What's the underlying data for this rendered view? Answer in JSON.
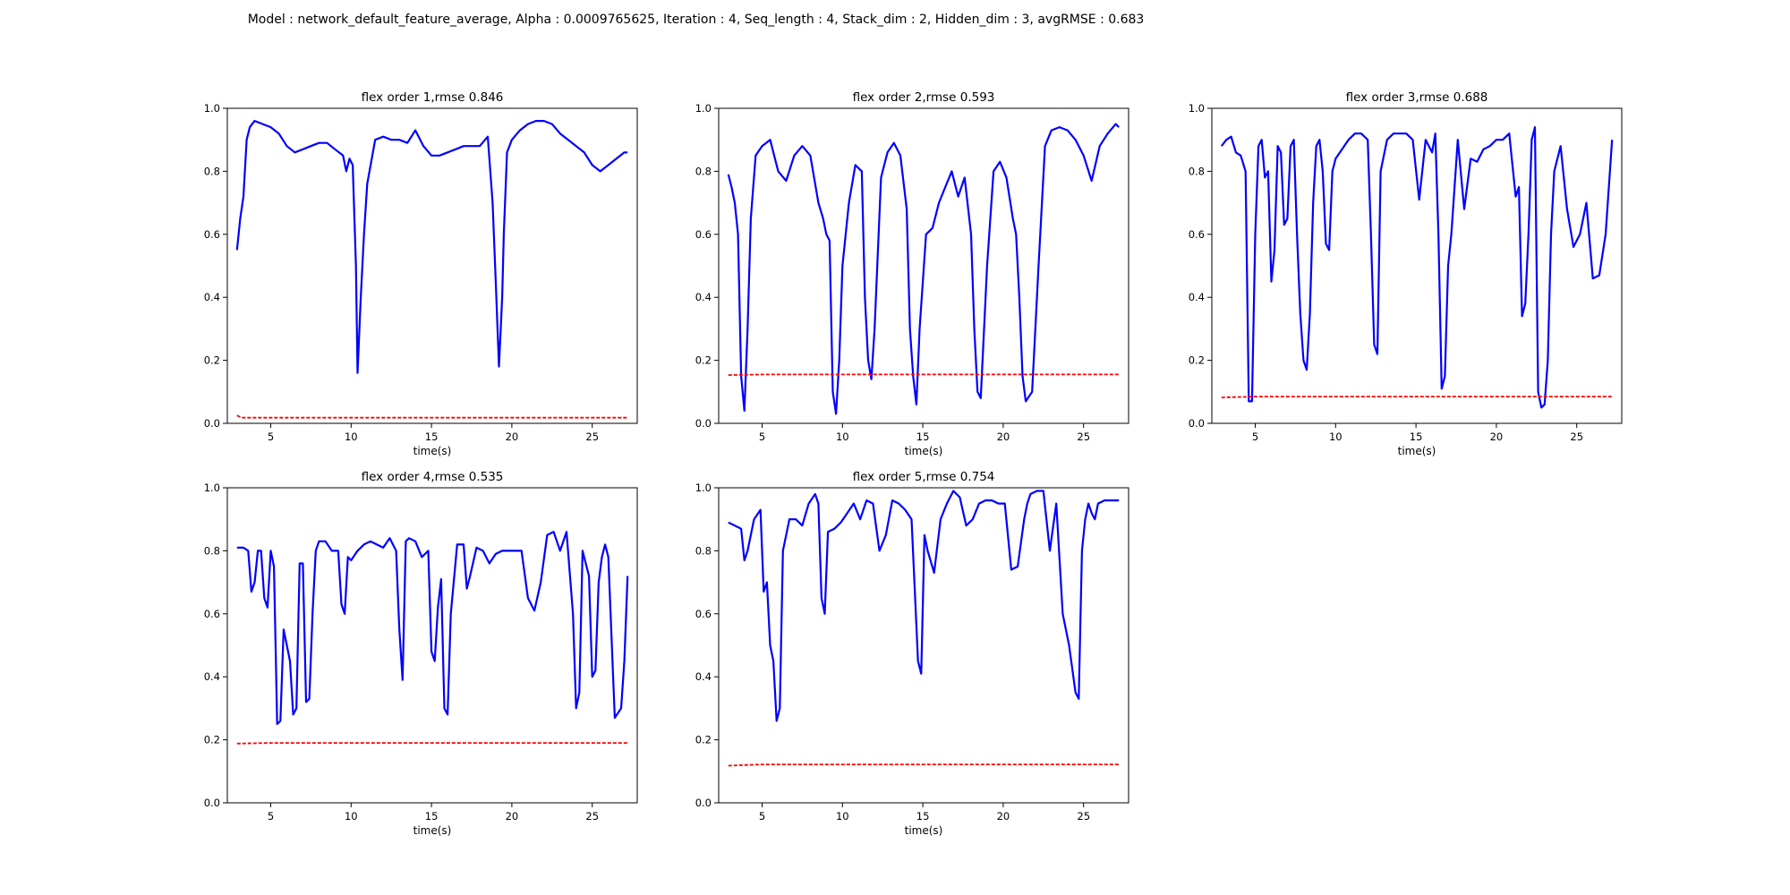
{
  "figure": {
    "suptitle": "Model : network_default_feature_average, Alpha : 0.0009765625, Iteration : 4, Seq_length : 4, Stack_dim : 2, Hidden_dim : 3, avgRMSE : 0.683"
  },
  "chart_data": [
    {
      "type": "line",
      "title": "flex order 1,rmse 0.846",
      "xlabel": "time(s)",
      "ylabel": "",
      "xlim": [
        2.3,
        27.8
      ],
      "ylim": [
        0,
        1
      ],
      "xticks": [
        5,
        10,
        15,
        20,
        25
      ],
      "yticks": [
        0.0,
        0.2,
        0.4,
        0.6,
        0.8,
        1.0
      ],
      "series": [
        {
          "color": "#0000ff",
          "style": "solid",
          "x": [
            2.9,
            3.1,
            3.3,
            3.5,
            3.7,
            4.0,
            4.5,
            5.0,
            5.5,
            6.0,
            6.5,
            7.0,
            7.5,
            8.0,
            8.5,
            9.0,
            9.5,
            9.7,
            9.9,
            10.1,
            10.3,
            10.4,
            10.6,
            10.8,
            11.0,
            11.5,
            12.0,
            12.5,
            13.0,
            13.5,
            14.0,
            14.5,
            15.0,
            15.5,
            16.0,
            16.5,
            17.0,
            17.5,
            18.0,
            18.5,
            18.8,
            19.0,
            19.2,
            19.4,
            19.5,
            19.7,
            20.0,
            20.5,
            21.0,
            21.5,
            22.0,
            22.5,
            23.0,
            23.5,
            24.0,
            24.5,
            25.0,
            25.5,
            26.0,
            26.5,
            27.0,
            27.2
          ],
          "y": [
            0.55,
            0.65,
            0.72,
            0.9,
            0.94,
            0.96,
            0.95,
            0.94,
            0.92,
            0.88,
            0.86,
            0.87,
            0.88,
            0.89,
            0.89,
            0.87,
            0.85,
            0.8,
            0.84,
            0.82,
            0.5,
            0.16,
            0.4,
            0.6,
            0.76,
            0.9,
            0.91,
            0.9,
            0.9,
            0.89,
            0.93,
            0.88,
            0.85,
            0.85,
            0.86,
            0.87,
            0.88,
            0.88,
            0.88,
            0.91,
            0.7,
            0.45,
            0.18,
            0.4,
            0.6,
            0.86,
            0.9,
            0.93,
            0.95,
            0.96,
            0.96,
            0.95,
            0.92,
            0.9,
            0.88,
            0.86,
            0.82,
            0.8,
            0.82,
            0.84,
            0.86,
            0.86
          ]
        },
        {
          "color": "#ff0000",
          "style": "dashed",
          "x": [
            2.9,
            3.1,
            3.3,
            5.0,
            10.0,
            15.0,
            20.0,
            25.0,
            27.2
          ],
          "y": [
            0.025,
            0.02,
            0.018,
            0.018,
            0.018,
            0.018,
            0.018,
            0.018,
            0.018
          ]
        }
      ]
    },
    {
      "type": "line",
      "title": "flex order 2,rmse 0.593",
      "xlabel": "time(s)",
      "ylabel": "",
      "xlim": [
        2.3,
        27.8
      ],
      "ylim": [
        0,
        1
      ],
      "xticks": [
        5,
        10,
        15,
        20,
        25
      ],
      "yticks": [
        0.0,
        0.2,
        0.4,
        0.6,
        0.8,
        1.0
      ],
      "series": [
        {
          "color": "#0000ff",
          "style": "solid",
          "x": [
            2.9,
            3.1,
            3.3,
            3.5,
            3.7,
            3.9,
            4.1,
            4.3,
            4.6,
            5.0,
            5.5,
            6.0,
            6.5,
            7.0,
            7.5,
            8.0,
            8.5,
            8.8,
            9.0,
            9.2,
            9.4,
            9.6,
            9.8,
            10.0,
            10.4,
            10.8,
            11.2,
            11.4,
            11.6,
            11.8,
            12.0,
            12.4,
            12.8,
            13.2,
            13.6,
            14.0,
            14.2,
            14.4,
            14.6,
            14.8,
            15.2,
            15.6,
            16.0,
            16.4,
            16.8,
            17.2,
            17.6,
            18.0,
            18.2,
            18.4,
            18.6,
            19.0,
            19.4,
            19.8,
            20.2,
            20.6,
            20.8,
            21.0,
            21.2,
            21.4,
            21.8,
            22.2,
            22.6,
            23.0,
            23.5,
            24.0,
            24.5,
            25.0,
            25.5,
            26.0,
            26.5,
            27.0,
            27.2
          ],
          "y": [
            0.79,
            0.75,
            0.7,
            0.6,
            0.15,
            0.04,
            0.3,
            0.65,
            0.85,
            0.88,
            0.9,
            0.8,
            0.77,
            0.85,
            0.88,
            0.85,
            0.7,
            0.65,
            0.6,
            0.58,
            0.1,
            0.03,
            0.2,
            0.5,
            0.7,
            0.82,
            0.8,
            0.4,
            0.2,
            0.14,
            0.3,
            0.78,
            0.86,
            0.89,
            0.85,
            0.68,
            0.3,
            0.15,
            0.06,
            0.3,
            0.6,
            0.62,
            0.7,
            0.75,
            0.8,
            0.72,
            0.78,
            0.6,
            0.3,
            0.1,
            0.08,
            0.5,
            0.8,
            0.83,
            0.78,
            0.65,
            0.6,
            0.4,
            0.15,
            0.07,
            0.1,
            0.5,
            0.88,
            0.93,
            0.94,
            0.93,
            0.9,
            0.85,
            0.77,
            0.88,
            0.92,
            0.95,
            0.94
          ]
        },
        {
          "color": "#ff0000",
          "style": "dashed",
          "x": [
            2.9,
            5.0,
            10.0,
            15.0,
            20.0,
            25.0,
            27.2
          ],
          "y": [
            0.153,
            0.155,
            0.155,
            0.155,
            0.155,
            0.155,
            0.155
          ]
        }
      ]
    },
    {
      "type": "line",
      "title": "flex order 3,rmse 0.688",
      "xlabel": "time(s)",
      "ylabel": "",
      "xlim": [
        2.3,
        27.8
      ],
      "ylim": [
        0,
        1
      ],
      "xticks": [
        5,
        10,
        15,
        20,
        25
      ],
      "yticks": [
        0.0,
        0.2,
        0.4,
        0.6,
        0.8,
        1.0
      ],
      "series": [
        {
          "color": "#0000ff",
          "style": "solid",
          "x": [
            2.9,
            3.2,
            3.5,
            3.8,
            4.1,
            4.4,
            4.6,
            4.8,
            5.0,
            5.2,
            5.4,
            5.6,
            5.8,
            6.0,
            6.2,
            6.4,
            6.6,
            6.8,
            7.0,
            7.2,
            7.4,
            7.6,
            7.8,
            8.0,
            8.2,
            8.4,
            8.6,
            8.8,
            9.0,
            9.2,
            9.4,
            9.6,
            9.8,
            10.0,
            10.4,
            10.8,
            11.2,
            11.6,
            12.0,
            12.2,
            12.4,
            12.6,
            12.8,
            13.2,
            13.6,
            14.0,
            14.4,
            14.8,
            15.2,
            15.6,
            16.0,
            16.2,
            16.4,
            16.6,
            16.8,
            17.0,
            17.2,
            17.6,
            18.0,
            18.4,
            18.8,
            19.2,
            19.6,
            20.0,
            20.4,
            20.8,
            21.2,
            21.4,
            21.6,
            21.8,
            22.0,
            22.2,
            22.4,
            22.6,
            22.8,
            23.0,
            23.2,
            23.4,
            23.6,
            24.0,
            24.4,
            24.8,
            25.2,
            25.6,
            26.0,
            26.4,
            26.8,
            27.2
          ],
          "y": [
            0.88,
            0.9,
            0.91,
            0.86,
            0.85,
            0.8,
            0.07,
            0.07,
            0.6,
            0.88,
            0.9,
            0.78,
            0.8,
            0.45,
            0.55,
            0.88,
            0.86,
            0.63,
            0.65,
            0.88,
            0.9,
            0.6,
            0.35,
            0.2,
            0.17,
            0.35,
            0.7,
            0.88,
            0.9,
            0.8,
            0.57,
            0.55,
            0.8,
            0.84,
            0.87,
            0.9,
            0.92,
            0.92,
            0.9,
            0.6,
            0.25,
            0.22,
            0.8,
            0.9,
            0.92,
            0.92,
            0.92,
            0.9,
            0.71,
            0.9,
            0.86,
            0.92,
            0.6,
            0.11,
            0.15,
            0.5,
            0.6,
            0.9,
            0.68,
            0.84,
            0.83,
            0.87,
            0.88,
            0.9,
            0.9,
            0.92,
            0.72,
            0.75,
            0.34,
            0.38,
            0.6,
            0.9,
            0.94,
            0.1,
            0.05,
            0.06,
            0.2,
            0.6,
            0.8,
            0.88,
            0.68,
            0.56,
            0.6,
            0.7,
            0.46,
            0.47,
            0.6,
            0.9
          ],
          "_note": ""
        },
        {
          "color": "#ff0000",
          "style": "dashed",
          "x": [
            2.9,
            5.0,
            10.0,
            15.0,
            20.0,
            25.0,
            27.2
          ],
          "y": [
            0.082,
            0.085,
            0.085,
            0.085,
            0.085,
            0.085,
            0.085
          ]
        }
      ]
    },
    {
      "type": "line",
      "title": "flex order 4,rmse 0.535",
      "xlabel": "time(s)",
      "ylabel": "",
      "xlim": [
        2.3,
        27.8
      ],
      "ylim": [
        0,
        1
      ],
      "xticks": [
        5,
        10,
        15,
        20,
        25
      ],
      "yticks": [
        0.0,
        0.2,
        0.4,
        0.6,
        0.8,
        1.0
      ],
      "series": [
        {
          "color": "#0000ff",
          "style": "solid",
          "x": [
            2.9,
            3.3,
            3.6,
            3.8,
            4.0,
            4.2,
            4.4,
            4.6,
            4.8,
            5.0,
            5.2,
            5.4,
            5.6,
            5.8,
            6.0,
            6.2,
            6.4,
            6.6,
            6.8,
            7.0,
            7.2,
            7.4,
            7.6,
            7.8,
            8.0,
            8.4,
            8.8,
            9.2,
            9.4,
            9.6,
            9.8,
            10.0,
            10.4,
            10.8,
            11.2,
            11.6,
            12.0,
            12.4,
            12.8,
            13.0,
            13.2,
            13.4,
            13.6,
            14.0,
            14.4,
            14.8,
            15.0,
            15.2,
            15.4,
            15.6,
            15.8,
            16.0,
            16.2,
            16.6,
            17.0,
            17.2,
            17.4,
            17.8,
            18.2,
            18.6,
            19.0,
            19.4,
            19.8,
            20.2,
            20.6,
            21.0,
            21.4,
            21.8,
            22.2,
            22.6,
            23.0,
            23.4,
            23.8,
            24.0,
            24.2,
            24.4,
            24.6,
            24.8,
            25.0,
            25.2,
            25.4,
            25.6,
            25.8,
            26.0,
            26.4,
            26.8,
            27.0,
            27.2
          ],
          "y": [
            0.81,
            0.81,
            0.8,
            0.67,
            0.7,
            0.8,
            0.8,
            0.65,
            0.62,
            0.8,
            0.75,
            0.25,
            0.26,
            0.55,
            0.5,
            0.45,
            0.28,
            0.3,
            0.76,
            0.76,
            0.32,
            0.33,
            0.6,
            0.8,
            0.83,
            0.83,
            0.8,
            0.8,
            0.63,
            0.6,
            0.78,
            0.77,
            0.8,
            0.82,
            0.83,
            0.82,
            0.81,
            0.84,
            0.8,
            0.55,
            0.39,
            0.83,
            0.84,
            0.83,
            0.78,
            0.8,
            0.48,
            0.45,
            0.62,
            0.71,
            0.3,
            0.28,
            0.6,
            0.82,
            0.82,
            0.68,
            0.72,
            0.81,
            0.8,
            0.76,
            0.79,
            0.8,
            0.8,
            0.8,
            0.8,
            0.65,
            0.61,
            0.7,
            0.85,
            0.86,
            0.8,
            0.86,
            0.6,
            0.3,
            0.35,
            0.8,
            0.76,
            0.72,
            0.4,
            0.42,
            0.7,
            0.78,
            0.82,
            0.78,
            0.27,
            0.3,
            0.45,
            0.72
          ]
        },
        {
          "color": "#ff0000",
          "style": "dashed",
          "x": [
            2.9,
            5.0,
            10.0,
            15.0,
            20.0,
            25.0,
            27.2
          ],
          "y": [
            0.188,
            0.19,
            0.19,
            0.19,
            0.19,
            0.19,
            0.19
          ]
        }
      ]
    },
    {
      "type": "line",
      "title": "flex order 5,rmse 0.754",
      "xlabel": "time(s)",
      "ylabel": "",
      "xlim": [
        2.3,
        27.8
      ],
      "ylim": [
        0,
        1
      ],
      "xticks": [
        5,
        10,
        15,
        20,
        25
      ],
      "yticks": [
        0.0,
        0.2,
        0.4,
        0.6,
        0.8,
        1.0
      ],
      "series": [
        {
          "color": "#0000ff",
          "style": "solid",
          "x": [
            2.9,
            3.3,
            3.7,
            3.9,
            4.1,
            4.5,
            4.9,
            5.1,
            5.3,
            5.5,
            5.7,
            5.9,
            6.1,
            6.3,
            6.5,
            6.7,
            6.9,
            7.1,
            7.5,
            7.9,
            8.3,
            8.5,
            8.7,
            8.9,
            9.1,
            9.5,
            9.9,
            10.3,
            10.7,
            11.1,
            11.5,
            11.9,
            12.3,
            12.7,
            13.1,
            13.5,
            13.9,
            14.3,
            14.7,
            14.9,
            15.1,
            15.3,
            15.7,
            16.1,
            16.5,
            16.9,
            17.3,
            17.7,
            18.1,
            18.5,
            18.9,
            19.3,
            19.7,
            20.1,
            20.5,
            20.9,
            21.3,
            21.5,
            21.7,
            22.1,
            22.5,
            22.9,
            23.3,
            23.7,
            24.1,
            24.5,
            24.7,
            24.9,
            25.1,
            25.3,
            25.5,
            25.7,
            25.9,
            26.3,
            26.7,
            27.2
          ],
          "y": [
            0.89,
            0.88,
            0.87,
            0.77,
            0.8,
            0.9,
            0.93,
            0.67,
            0.7,
            0.5,
            0.45,
            0.26,
            0.3,
            0.8,
            0.85,
            0.9,
            0.9,
            0.9,
            0.88,
            0.95,
            0.98,
            0.95,
            0.65,
            0.6,
            0.86,
            0.87,
            0.89,
            0.92,
            0.95,
            0.9,
            0.96,
            0.95,
            0.8,
            0.85,
            0.96,
            0.95,
            0.93,
            0.9,
            0.45,
            0.41,
            0.85,
            0.8,
            0.73,
            0.9,
            0.95,
            0.99,
            0.97,
            0.88,
            0.9,
            0.95,
            0.96,
            0.96,
            0.95,
            0.95,
            0.74,
            0.75,
            0.9,
            0.95,
            0.98,
            0.99,
            0.99,
            0.8,
            0.95,
            0.6,
            0.5,
            0.35,
            0.33,
            0.8,
            0.9,
            0.95,
            0.92,
            0.9,
            0.95,
            0.96,
            0.96,
            0.96
          ]
        },
        {
          "color": "#ff0000",
          "style": "dashed",
          "x": [
            2.9,
            5.0,
            10.0,
            15.0,
            20.0,
            25.0,
            27.2
          ],
          "y": [
            0.118,
            0.122,
            0.122,
            0.122,
            0.122,
            0.122,
            0.122
          ]
        }
      ]
    }
  ]
}
